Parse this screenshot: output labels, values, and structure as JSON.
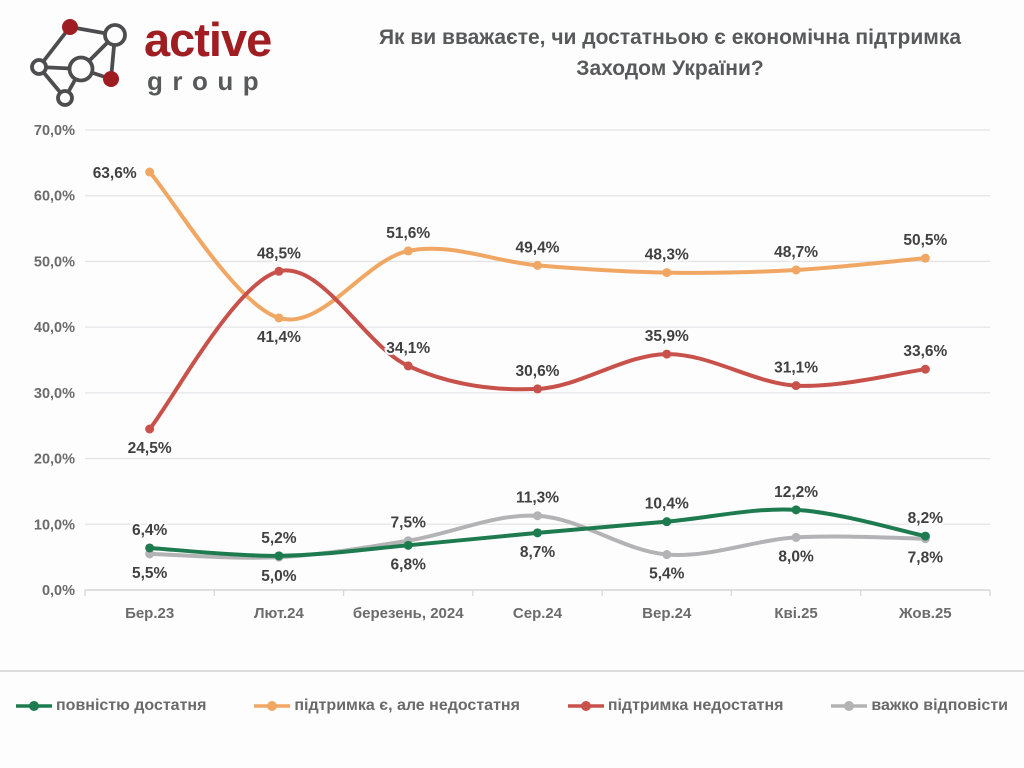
{
  "header": {
    "logo_text_primary": "active",
    "logo_text_secondary": "group",
    "title_line1": "Як ви вважаєте, чи достатньою є економічна підтримка",
    "title_line2": "Заходом України?"
  },
  "colors": {
    "logo_primary": "#A01E22",
    "logo_secondary": "#58595B",
    "logo_node_stroke": "#4D4D4F",
    "logo_node_fill": "#9E1D23",
    "title_text": "#58595B",
    "axis_text": "#6B6B6B",
    "value_label_text": "#414141",
    "gridline": "#E4E4E6",
    "axis_line": "#D8D8D8",
    "background": "#FDFDFD"
  },
  "chart_data": {
    "type": "line",
    "title": "Як ви вважаєте, чи достатньою є економічна підтримка Заходом України?",
    "categories": [
      "Бер.23",
      "Лют.24",
      "березень, 2024",
      "Сер.24",
      "Вер.24",
      "Кві.25",
      "Жов.25"
    ],
    "series": [
      {
        "name": "повністю достатня",
        "color": "#1E7B4F",
        "values": [
          6.4,
          5.2,
          6.8,
          8.7,
          10.4,
          12.2,
          8.2
        ],
        "label_positions": [
          "above",
          "above",
          "below",
          "below",
          "above",
          "above",
          "above"
        ]
      },
      {
        "name": "підтримка є, але недостатня",
        "color": "#F0A763",
        "values": [
          63.6,
          41.4,
          51.6,
          49.4,
          48.3,
          48.7,
          50.5
        ],
        "label_positions": [
          "left",
          "below",
          "above",
          "above",
          "above",
          "above",
          "above"
        ]
      },
      {
        "name": "підтримка недостатня",
        "color": "#C8524B",
        "values": [
          24.5,
          48.5,
          34.1,
          30.6,
          35.9,
          31.1,
          33.6
        ],
        "label_positions": [
          "below",
          "above",
          "above",
          "above",
          "above",
          "above",
          "above"
        ]
      },
      {
        "name": "важко відповісти",
        "color": "#B3B3B5",
        "values": [
          5.5,
          5.0,
          7.5,
          11.3,
          5.4,
          8.0,
          7.8
        ],
        "label_positions": [
          "below",
          "below",
          "above",
          "above",
          "below",
          "below",
          "below"
        ]
      }
    ],
    "ylim": [
      0,
      70
    ],
    "ytick_step": 10,
    "ytick_labels": [
      "0,0%",
      "10,0%",
      "20,0%",
      "30,0%",
      "40,0%",
      "50,0%",
      "60,0%",
      "70,0%"
    ],
    "grid": "horizontal",
    "legend_position": "bottom",
    "value_labels_shown": true,
    "smooth_lines": true
  }
}
